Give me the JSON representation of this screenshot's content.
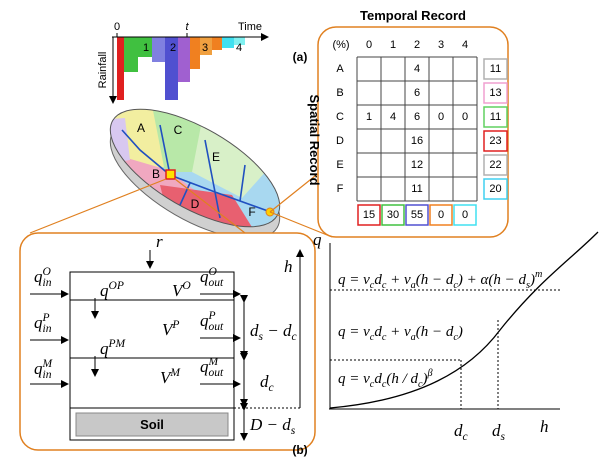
{
  "hyetograph": {
    "origin": "0",
    "t": "t",
    "time_label": "Time",
    "rainfall_label": "Rainfall",
    "bars": [
      "1",
      "2",
      "3",
      "4"
    ]
  },
  "catchment": {
    "subcatchments": [
      "A",
      "B",
      "C",
      "D",
      "E",
      "F"
    ]
  },
  "panel_a": {
    "label": "(a)",
    "title": "Temporal Record",
    "side_title": "Spatial Record",
    "corner": "(%)",
    "columns": [
      "0",
      "1",
      "2",
      "3",
      "4"
    ],
    "rows": [
      {
        "name": "A",
        "cells": [
          null,
          null,
          4,
          null,
          null
        ],
        "total": 11
      },
      {
        "name": "B",
        "cells": [
          null,
          null,
          6,
          null,
          null
        ],
        "total": 13
      },
      {
        "name": "C",
        "cells": [
          1,
          4,
          6,
          0,
          0
        ],
        "total": 11
      },
      {
        "name": "D",
        "cells": [
          null,
          null,
          16,
          null,
          null
        ],
        "total": 23
      },
      {
        "name": "E",
        "cells": [
          null,
          null,
          12,
          null,
          null
        ],
        "total": 22
      },
      {
        "name": "F",
        "cells": [
          null,
          null,
          11,
          null,
          null
        ],
        "total": 20
      }
    ],
    "column_totals": [
      15,
      30,
      55,
      0,
      0
    ]
  },
  "panel_b": {
    "label": "(b)",
    "rain": "r",
    "soil": "Soil",
    "math": {
      "q_in_O": [
        "q",
        {
          "sup": "O",
          "sub": "in"
        }
      ],
      "q_OP": [
        "q",
        {
          "sup": "OP"
        }
      ],
      "V_O": [
        "V",
        {
          "sup": "O"
        }
      ],
      "q_out_O": [
        "q",
        {
          "sup": "O",
          "sub": "out"
        }
      ],
      "q_in_P": [
        "q",
        {
          "sup": "P",
          "sub": "in"
        }
      ],
      "V_P": [
        "V",
        {
          "sup": "P"
        }
      ],
      "q_out_P": [
        "q",
        {
          "sup": "P",
          "sub": "out"
        }
      ],
      "q_PM": [
        "q",
        {
          "sup": "PM"
        }
      ],
      "q_in_M": [
        "q",
        {
          "sup": "M",
          "sub": "in"
        }
      ],
      "V_M": [
        "V",
        {
          "sup": "M"
        }
      ],
      "q_out_M": [
        "q",
        {
          "sup": "M",
          "sub": "out"
        }
      ],
      "h": [
        "h"
      ],
      "ds_dc": [
        "d",
        {
          "sub": "s"
        },
        " − d",
        {
          "sub": "c"
        }
      ],
      "dc": [
        "d",
        {
          "sub": "c"
        }
      ],
      "D_ds": [
        "D − d",
        {
          "sub": "s"
        }
      ]
    }
  },
  "graph": {
    "y_label": [
      "q"
    ],
    "x_label": [
      "h"
    ],
    "dc": [
      "d",
      {
        "sub": "c"
      }
    ],
    "ds": [
      "d",
      {
        "sub": "s"
      }
    ],
    "eq1": [
      "q = v",
      {
        "sub": "c"
      },
      "d",
      {
        "sub": "c"
      },
      " + v",
      {
        "sub": "a"
      },
      "(h − d",
      {
        "sub": "c"
      },
      ") + α(h − d",
      {
        "sub": "s"
      },
      ")",
      {
        "sup": "m"
      }
    ],
    "eq2": [
      "q = v",
      {
        "sub": "c"
      },
      "d",
      {
        "sub": "c"
      },
      " + v",
      {
        "sub": "a"
      },
      "(h − d",
      {
        "sub": "c"
      },
      ")"
    ],
    "eq3": [
      "q = v",
      {
        "sub": "c"
      },
      "d",
      {
        "sub": "c"
      },
      "(h / d",
      {
        "sub": "c"
      },
      ")",
      {
        "sup": "β"
      }
    ]
  }
}
